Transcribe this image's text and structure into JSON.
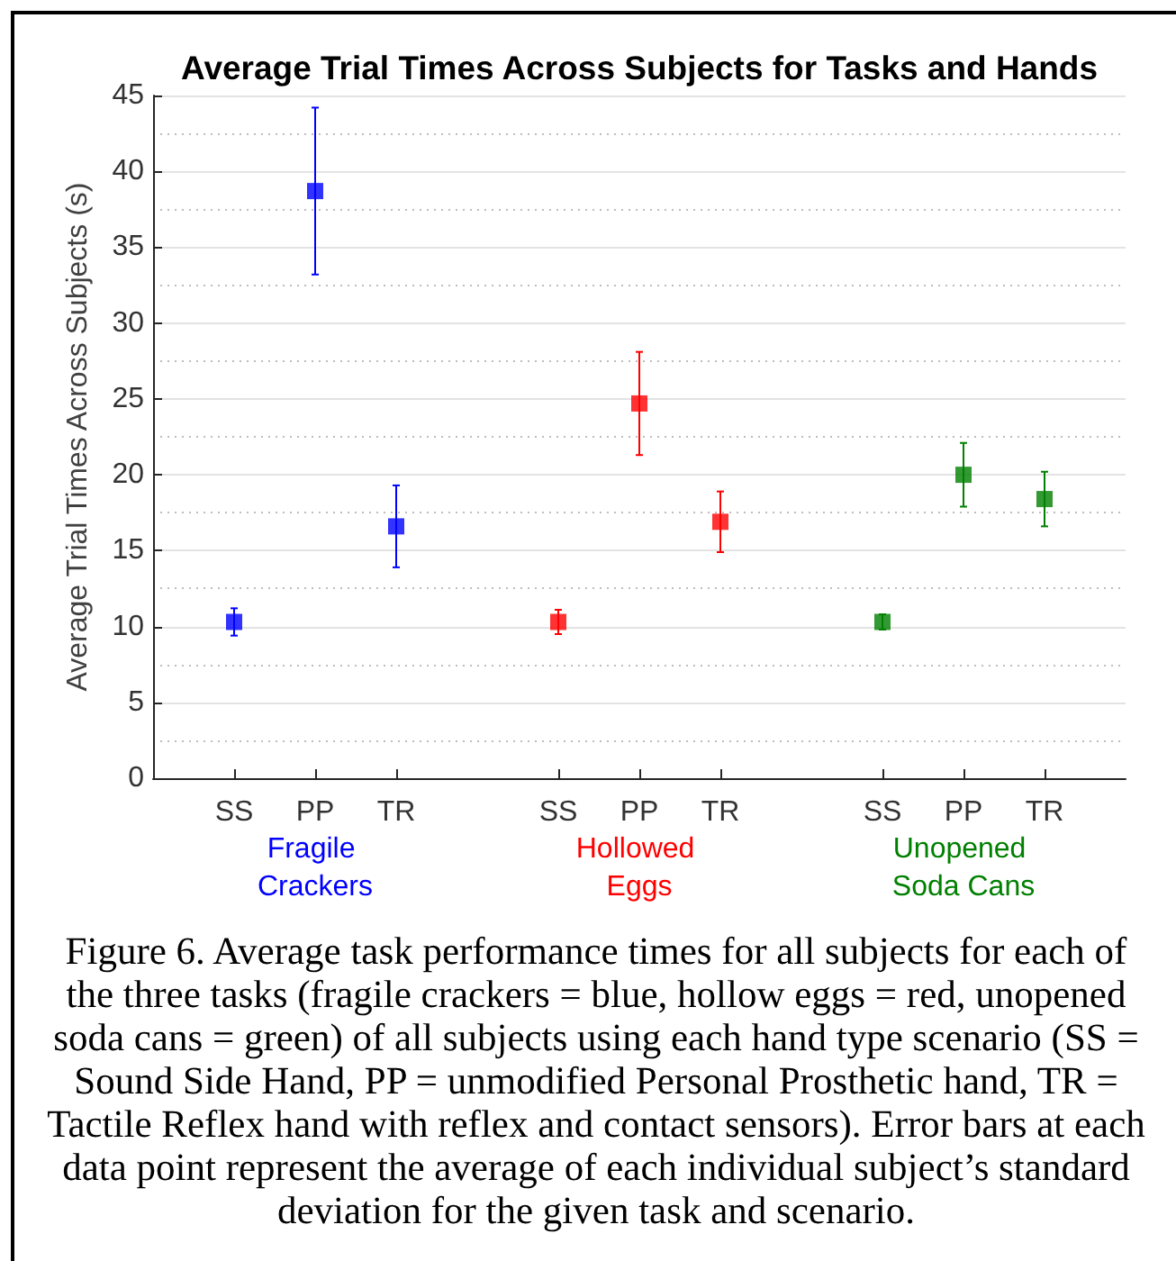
{
  "chart_data": {
    "type": "scatter",
    "title": "Average Trial Times Across Subjects for Tasks and Hands",
    "ylabel": "Average Trial Times Across Subjects (s)",
    "categories": [
      null,
      "SS",
      "PP",
      "TR",
      null,
      "SS",
      "PP",
      "TR",
      null,
      "SS",
      "PP",
      "TR",
      null
    ],
    "series": [
      {
        "name": "Fragile Crackers",
        "color": "#0000ff",
        "values": [
          null,
          10.3,
          38.7,
          16.6,
          null,
          null,
          null,
          null,
          null,
          null,
          null,
          null,
          null
        ],
        "errors": [
          null,
          0.9,
          5.5,
          2.7,
          null,
          null,
          null,
          null,
          null,
          null,
          null,
          null,
          null
        ]
      },
      {
        "name": "Hollowed Eggs",
        "color": "#ff0000",
        "values": [
          null,
          null,
          null,
          null,
          null,
          10.3,
          24.7,
          16.9,
          null,
          null,
          null,
          null,
          null
        ],
        "errors": [
          null,
          null,
          null,
          null,
          null,
          0.8,
          3.4,
          2.0,
          null,
          null,
          null,
          null,
          null
        ]
      },
      {
        "name": "Unopened Soda Cans",
        "color": "#008000",
        "values": [
          null,
          null,
          null,
          null,
          null,
          null,
          null,
          null,
          null,
          10.3,
          20.0,
          18.4,
          null
        ],
        "errors": [
          null,
          null,
          null,
          null,
          null,
          null,
          null,
          null,
          null,
          0.5,
          2.1,
          1.8,
          null
        ]
      }
    ],
    "ylim": [
      0,
      45
    ],
    "yticks": [
      0,
      5,
      10,
      15,
      20,
      25,
      30,
      35,
      40,
      45
    ],
    "grid": "y",
    "marker": "square",
    "annotations": [
      "Figure 6. Average task performance times for all subjects for each of the three tasks (fragile crackers = blue, hollow eggs = red, unopened soda cans = green) of all subjects using each hand type scenario (SS = Sound Side Hand, PP = unmodified Personal Prosthetic hand, TR = Tactile Reflex hand with reflex and contact sensors). Error bars at each data point represent the average of each individual subject’s standard deviation for the given task and scenario."
    ]
  }
}
